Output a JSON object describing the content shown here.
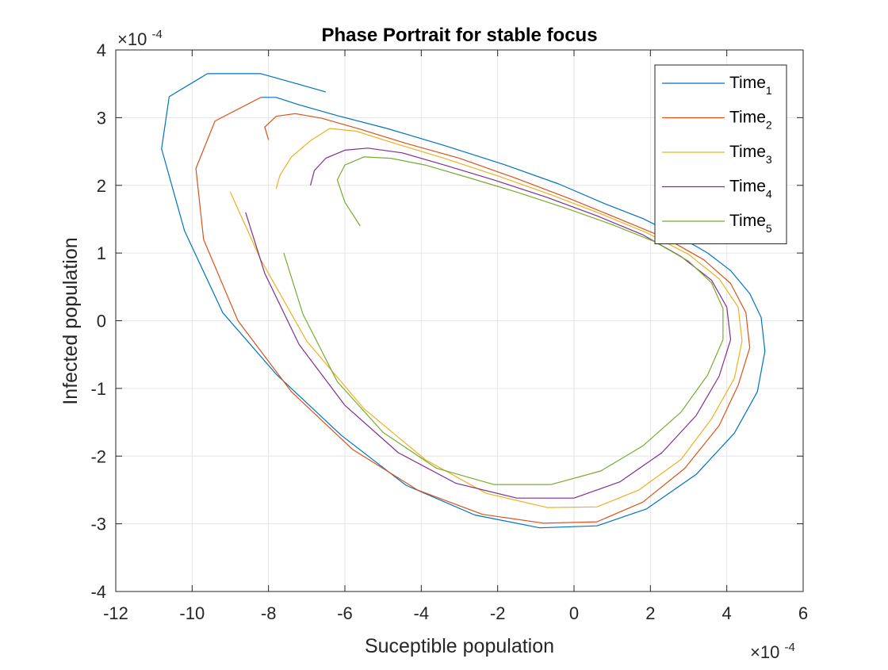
{
  "chart_data": {
    "type": "line",
    "title": "Phase Portrait for stable focus",
    "xlabel": "Suceptible population",
    "ylabel": "Infected population",
    "xlim": [
      -12,
      6
    ],
    "ylim": [
      -4,
      4
    ],
    "x_ticks": [
      "-12",
      "-10",
      "-8",
      "-6",
      "-4",
      "-2",
      "0",
      "2",
      "4",
      "6"
    ],
    "y_ticks": [
      "-4",
      "-3",
      "-2",
      "-1",
      "0",
      "1",
      "2",
      "3",
      "4"
    ],
    "x_exponent": {
      "base": "×10",
      "power": "-4"
    },
    "y_exponent": {
      "base": "×10",
      "power": "-4"
    },
    "grid": true,
    "legend_position": "top-right",
    "series": [
      {
        "name_base": "Time",
        "name_sub": "1",
        "color": "#0072BD",
        "x": [
          -6.5,
          -8.2,
          -9.6,
          -10.6,
          -10.8,
          -10.2,
          -9.2,
          -7.8,
          -6.1,
          -4.4,
          -2.6,
          -0.9,
          0.6,
          1.9,
          3.2,
          4.2,
          4.8,
          5.0,
          4.9,
          4.6,
          4.1,
          3.5,
          2.7,
          1.8,
          0.8,
          -0.4,
          -1.9,
          -3.4,
          -4.9,
          -6.2,
          -7.2,
          -7.8,
          -8.2
        ],
        "y": [
          3.38,
          3.65,
          3.65,
          3.31,
          2.54,
          1.33,
          0.12,
          -0.79,
          -1.69,
          -2.43,
          -2.87,
          -3.06,
          -3.03,
          -2.78,
          -2.27,
          -1.66,
          -1.05,
          -0.45,
          0.05,
          0.4,
          0.74,
          1.0,
          1.26,
          1.51,
          1.73,
          2.02,
          2.32,
          2.59,
          2.84,
          3.03,
          3.19,
          3.3,
          3.3
        ]
      },
      {
        "name_base": "Time",
        "name_sub": "2",
        "color": "#D95319",
        "x": [
          -8.2,
          -9.4,
          -9.9,
          -9.7,
          -8.8,
          -7.4,
          -5.8,
          -4.1,
          -2.4,
          -0.8,
          0.6,
          1.8,
          2.9,
          3.8,
          4.3,
          4.6,
          4.5,
          4.1,
          3.4,
          2.4,
          1.2,
          -0.1,
          -1.5,
          -3.0,
          -4.4,
          -5.6,
          -6.6,
          -7.3,
          -7.8,
          -8.1,
          -8.0
        ],
        "y": [
          3.3,
          2.95,
          2.25,
          1.2,
          0.0,
          -1.05,
          -1.9,
          -2.5,
          -2.86,
          -2.99,
          -2.97,
          -2.68,
          -2.18,
          -1.55,
          -0.95,
          -0.4,
          0.12,
          0.55,
          0.9,
          1.22,
          1.5,
          1.8,
          2.1,
          2.4,
          2.62,
          2.83,
          2.99,
          3.06,
          3.02,
          2.86,
          2.67
        ]
      },
      {
        "name_base": "Time",
        "name_sub": "3",
        "color": "#EDB120",
        "x": [
          -9.0,
          -8.2,
          -7.0,
          -5.5,
          -3.9,
          -2.3,
          -0.7,
          0.6,
          1.7,
          2.8,
          3.6,
          4.2,
          4.4,
          4.3,
          3.8,
          3.0,
          1.9,
          0.7,
          -0.6,
          -2.0,
          -3.4,
          -4.7,
          -5.7,
          -6.4,
          -6.9,
          -7.4,
          -7.7,
          -7.8
        ],
        "y": [
          1.9,
          0.9,
          -0.3,
          -1.3,
          -2.05,
          -2.55,
          -2.76,
          -2.75,
          -2.5,
          -2.05,
          -1.45,
          -0.85,
          -0.3,
          0.2,
          0.62,
          0.98,
          1.3,
          1.58,
          1.86,
          2.14,
          2.4,
          2.62,
          2.8,
          2.84,
          2.66,
          2.42,
          2.15,
          1.95
        ]
      },
      {
        "name_base": "Time",
        "name_sub": "4",
        "color": "#7E2F8E",
        "x": [
          -8.6,
          -8.1,
          -7.2,
          -6.0,
          -4.6,
          -3.1,
          -1.5,
          0.0,
          1.2,
          2.3,
          3.2,
          3.8,
          4.1,
          4.0,
          3.6,
          2.8,
          1.8,
          0.6,
          -0.7,
          -2.1,
          -3.4,
          -4.5,
          -5.4,
          -6.0,
          -6.5,
          -6.8,
          -6.9
        ],
        "y": [
          1.6,
          0.7,
          -0.35,
          -1.25,
          -1.95,
          -2.4,
          -2.62,
          -2.62,
          -2.38,
          -1.95,
          -1.4,
          -0.82,
          -0.28,
          0.2,
          0.6,
          0.95,
          1.27,
          1.55,
          1.82,
          2.08,
          2.3,
          2.48,
          2.55,
          2.52,
          2.4,
          2.22,
          2.0
        ]
      },
      {
        "name_base": "Time",
        "name_sub": "5",
        "color": "#77AC30",
        "x": [
          -7.6,
          -7.1,
          -6.2,
          -5.0,
          -3.6,
          -2.1,
          -0.6,
          0.7,
          1.8,
          2.8,
          3.5,
          3.9,
          3.9,
          3.6,
          3.0,
          2.1,
          1.0,
          -0.2,
          -1.5,
          -2.8,
          -3.9,
          -4.8,
          -5.5,
          -6.0,
          -6.2,
          -6.0,
          -5.6
        ],
        "y": [
          1.0,
          0.1,
          -0.9,
          -1.65,
          -2.18,
          -2.42,
          -2.42,
          -2.22,
          -1.85,
          -1.35,
          -0.8,
          -0.28,
          0.18,
          0.56,
          0.88,
          1.17,
          1.42,
          1.66,
          1.9,
          2.12,
          2.3,
          2.4,
          2.42,
          2.3,
          2.08,
          1.75,
          1.4
        ]
      }
    ]
  }
}
